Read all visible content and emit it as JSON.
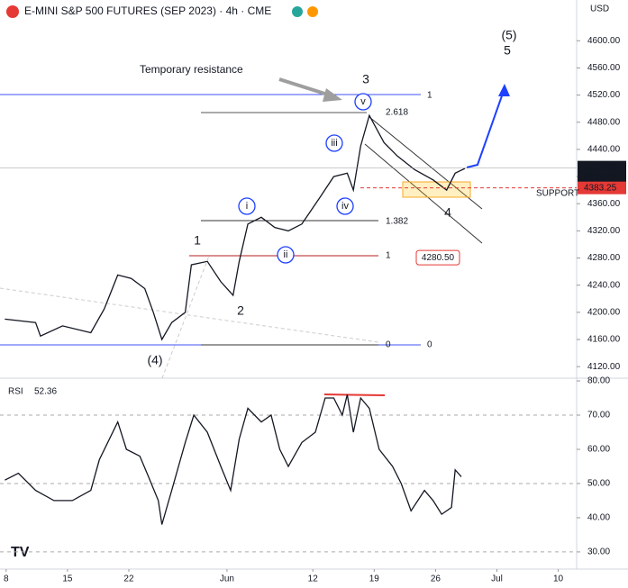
{
  "chart_data": [
    {
      "type": "line",
      "title": "E-MINI S&P 500 FUTURES (SEP 2023) · 4h · CME",
      "unit": "USD",
      "color": "#131722",
      "x": [
        -0.1,
        2.4,
        2.8,
        4.6,
        6.9,
        8.0,
        9.1,
        10.2,
        11.3,
        12.0,
        12.7,
        13.5,
        14.6,
        15.1,
        16.4,
        17.5,
        18.5,
        19.0,
        19.7,
        20.8,
        21.9,
        23.0,
        24.1,
        25.6,
        26.7,
        27.8,
        28.3,
        28.9,
        29.6,
        30.8,
        31.9,
        33.3,
        34.8,
        35.9,
        36.6,
        37.4
      ],
      "values": [
        4190,
        4185,
        4165,
        4180,
        4170,
        4205,
        4255,
        4250,
        4235,
        4200,
        4160,
        4185,
        4200,
        4270,
        4275,
        4245,
        4225,
        4275,
        4330,
        4340,
        4325,
        4320,
        4330,
        4370,
        4400,
        4405,
        4380,
        4445,
        4490,
        4450,
        4430,
        4410,
        4395,
        4380,
        4405,
        4412
      ],
      "xlim": [
        -0.5,
        46.5
      ],
      "ylim": [
        4103,
        4660
      ],
      "yticks": [
        {
          "value": 4120,
          "label": "4120.00"
        },
        {
          "value": 4160,
          "label": "4160.00"
        },
        {
          "value": 4200,
          "label": "4200.00"
        },
        {
          "value": 4240,
          "label": "4240.00"
        },
        {
          "value": 4280,
          "label": "4280.00"
        },
        {
          "value": 4320,
          "label": "4320.00"
        },
        {
          "value": 4360,
          "label": "4360.00"
        },
        {
          "value": 4400,
          "label": "4400.00"
        },
        {
          "value": 4440,
          "label": "4440.00"
        },
        {
          "value": 4480,
          "label": "4480.00"
        },
        {
          "value": 4520,
          "label": "4520.00"
        },
        {
          "value": 4560,
          "label": "4560.00"
        },
        {
          "value": 4600,
          "label": "4600.00"
        }
      ],
      "annotations": {
        "resistance": "Temporary resistance",
        "waves": [
          "(5)",
          "5",
          "3",
          "v",
          "iii",
          "iv",
          "i",
          "ii",
          "1",
          "2",
          "(4)",
          "4"
        ],
        "fib": [
          "2.618",
          "1.382",
          "1",
          "0",
          "1",
          "0"
        ],
        "last_price": {
          "value": 4412.5,
          "label": "4412.50"
        },
        "countdown": "03:55:41",
        "support_price": {
          "value": 4383.25,
          "label": "4383.25"
        },
        "support": "SUPPORT",
        "level_ii": {
          "value": 4280.5,
          "label": "4280.50"
        }
      }
    },
    {
      "type": "line",
      "title": "RSI",
      "last_value": 52.36,
      "color": "#131722",
      "x": [
        -0.1,
        1.0,
        2.4,
        3.9,
        5.4,
        6.9,
        7.6,
        9.1,
        9.8,
        10.9,
        11.6,
        12.4,
        12.7,
        13.5,
        14.6,
        15.3,
        16.4,
        17.5,
        18.3,
        19.0,
        19.7,
        20.8,
        21.6,
        22.3,
        23.0,
        24.1,
        25.2,
        26.0,
        26.7,
        27.4,
        27.8,
        28.3,
        28.9,
        29.6,
        30.4,
        31.5,
        32.2,
        33.0,
        34.1,
        34.8,
        35.5,
        36.3,
        36.6,
        37.1
      ],
      "values": [
        51,
        53,
        48,
        45,
        45,
        48,
        57,
        68,
        60,
        58,
        52,
        45,
        38,
        48,
        62,
        70,
        65,
        55,
        48,
        63,
        72,
        68,
        70,
        60,
        55,
        62,
        65,
        75,
        75,
        70,
        76,
        65,
        75,
        72,
        60,
        55,
        50,
        42,
        48,
        45,
        41,
        43,
        54,
        52
      ],
      "xlim": [
        -0.5,
        46.5
      ],
      "ylim": [
        25.5,
        80.8
      ],
      "yticks": [
        {
          "value": 30,
          "label": "30.00"
        },
        {
          "value": 40,
          "label": "40.00"
        },
        {
          "value": 50,
          "label": "50.00"
        },
        {
          "value": 60,
          "label": "60.00"
        },
        {
          "value": 70,
          "label": "70.00"
        },
        {
          "value": 80,
          "label": "80.00"
        }
      ],
      "xticks": [
        {
          "value": 0,
          "label": "8"
        },
        {
          "value": 5,
          "label": "15"
        },
        {
          "value": 10,
          "label": "22"
        },
        {
          "value": 18,
          "label": "Jun"
        },
        {
          "value": 25,
          "label": "12"
        },
        {
          "value": 30,
          "label": "19"
        },
        {
          "value": 35,
          "label": "26"
        },
        {
          "value": 40,
          "label": "Jul"
        },
        {
          "value": 45,
          "label": "10"
        }
      ]
    }
  ]
}
